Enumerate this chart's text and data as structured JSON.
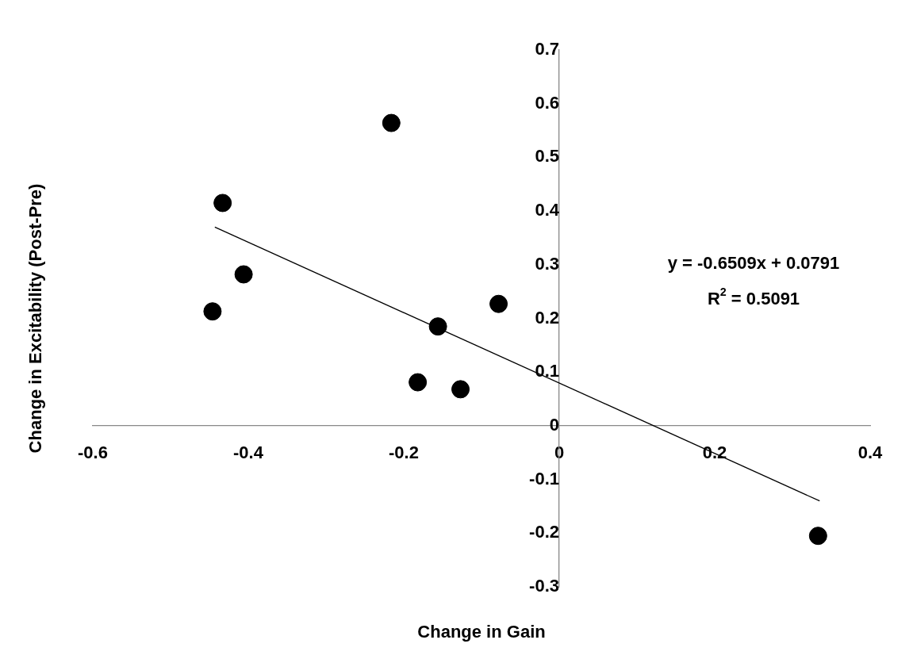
{
  "chart_data": {
    "type": "scatter",
    "xlabel": "Change in Gain",
    "ylabel": "Change in Excitability (Post-Pre)",
    "xlim": [
      -0.6,
      0.4
    ],
    "xticks": [
      -0.6,
      -0.4,
      -0.2,
      0,
      0.2,
      0.4
    ],
    "ylim": [
      -0.3,
      0.7
    ],
    "yticks": [
      -0.3,
      -0.2,
      -0.1,
      0,
      0.1,
      0.2,
      0.3,
      0.4,
      0.5,
      0.6,
      0.7
    ],
    "series": [
      {
        "color": "#000000",
        "marker": "circle",
        "x": [
          -0.446,
          -0.433,
          -0.406,
          -0.216,
          -0.156,
          -0.182,
          -0.127,
          -0.078,
          0.333
        ],
        "values": [
          0.213,
          0.415,
          0.282,
          0.564,
          0.185,
          0.081,
          0.068,
          0.227,
          -0.205
        ]
      },
      {
        "type": "line",
        "color": "#000000",
        "marker": "none",
        "x": [
          -0.443,
          0.335
        ],
        "values": [
          0.37,
          -0.14
        ]
      }
    ],
    "annotations": [
      "y = -0.6509x + 0.0791",
      "R$^{2}$ = 0.5091"
    ],
    "grid": false,
    "legend": false
  }
}
